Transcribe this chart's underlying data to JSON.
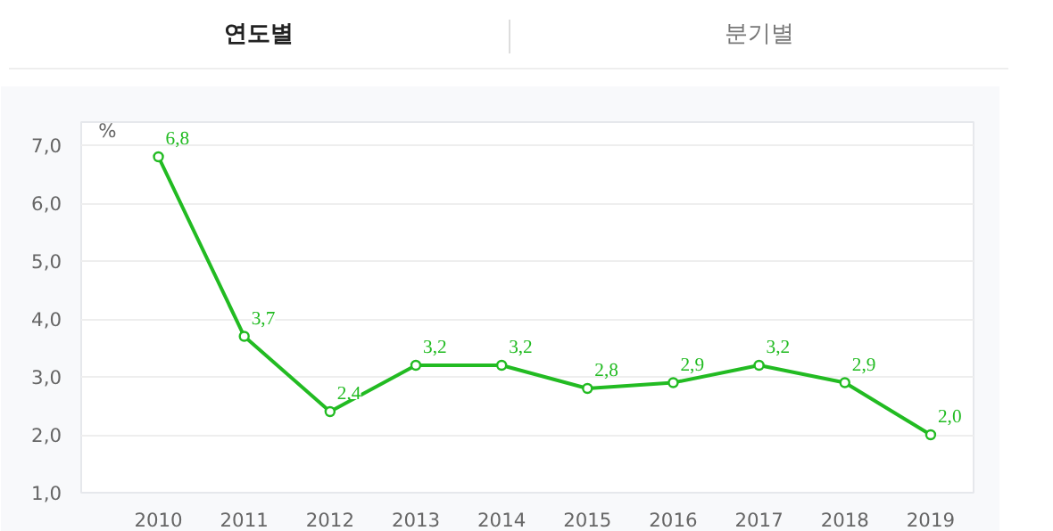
{
  "chart_data": {
    "type": "line",
    "ylabel": "%",
    "annotations": [
      "연도별",
      "분기별"
    ],
    "categories": [
      "2010",
      "2011",
      "2012",
      "2013",
      "2014",
      "2015",
      "2016",
      "2017",
      "2018",
      "2019"
    ],
    "series": [
      {
        "color": "#22bb22",
        "values": [
          6.8,
          3.7,
          2.4,
          3.2,
          3.2,
          2.8,
          2.9,
          3.2,
          2.9,
          2.0
        ],
        "value_labels": [
          "6,8",
          "3,7",
          "2,4",
          "3,2",
          "3,2",
          "2,8",
          "2,9",
          "3,2",
          "2,9",
          "2,0"
        ]
      }
    ],
    "ylim": [
      1.0,
      7.4
    ],
    "yticks": [
      {
        "value": 1,
        "label": "1,0"
      },
      {
        "value": 2,
        "label": "2,0"
      },
      {
        "value": 3,
        "label": "3,0"
      },
      {
        "value": 4,
        "label": "4,0"
      },
      {
        "value": 5,
        "label": "5,0"
      },
      {
        "value": 6,
        "label": "6,0"
      },
      {
        "value": 7,
        "label": "7,0"
      }
    ],
    "grid": "y",
    "marker": "circle",
    "line_style": "solid"
  }
}
